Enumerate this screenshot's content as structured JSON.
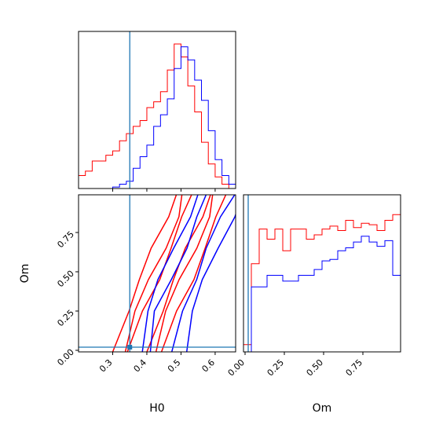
{
  "chart_data": {
    "type": "corner",
    "parameters": [
      "H0",
      "Om"
    ],
    "truth": {
      "H0": 0.35,
      "Om": 0.02
    },
    "colors": {
      "series_a": "#ff0000",
      "series_b": "#0000ff",
      "truth": "#1f77b4"
    },
    "panels": [
      {
        "id": "H0-hist",
        "type": "histogram",
        "x_param": "H0",
        "xlim": [
          0.2,
          0.66
        ],
        "bin_edges": [
          0.2,
          0.22,
          0.24,
          0.26,
          0.28,
          0.3,
          0.32,
          0.34,
          0.36,
          0.38,
          0.4,
          0.42,
          0.44,
          0.46,
          0.48,
          0.5,
          0.52,
          0.54,
          0.56,
          0.58,
          0.6,
          0.62,
          0.64,
          0.66
        ],
        "series": [
          {
            "color_key": "series_a",
            "values": [
              0.09,
              0.12,
              0.19,
              0.19,
              0.23,
              0.26,
              0.33,
              0.38,
              0.43,
              0.47,
              0.56,
              0.6,
              0.67,
              0.82,
              1.0,
              0.91,
              0.71,
              0.53,
              0.32,
              0.17,
              0.08,
              0.03,
              0.0
            ]
          },
          {
            "color_key": "series_b",
            "values": [
              0.0,
              0.0,
              0.0,
              0.0,
              0.0,
              0.01,
              0.03,
              0.05,
              0.14,
              0.22,
              0.3,
              0.43,
              0.51,
              0.62,
              0.83,
              0.98,
              0.89,
              0.75,
              0.61,
              0.4,
              0.2,
              0.09,
              0.03
            ]
          }
        ]
      },
      {
        "id": "H0-Om-contour",
        "type": "contour",
        "x_param": "H0",
        "y_param": "Om",
        "xlim": [
          0.2,
          0.66
        ],
        "ylim": [
          -0.01,
          0.99
        ],
        "series": [
          {
            "color_key": "series_a",
            "ridge": [
              [
                0.38,
                -0.01
              ],
              [
                0.42,
                0.25
              ],
              [
                0.46,
                0.45
              ],
              [
                0.5,
                0.65
              ],
              [
                0.54,
                0.85
              ],
              [
                0.56,
                0.99
              ]
            ],
            "offsets": [
              -0.08,
              -0.05,
              -0.03,
              0.02,
              0.04,
              0.07
            ]
          },
          {
            "color_key": "series_b",
            "ridge": [
              [
                0.45,
                -0.01
              ],
              [
                0.47,
                0.25
              ],
              [
                0.51,
                0.45
              ],
              [
                0.55,
                0.65
              ],
              [
                0.59,
                0.85
              ],
              [
                0.62,
                0.99
              ]
            ],
            "offsets": [
              -0.07,
              -0.04,
              0.03,
              0.06
            ]
          }
        ]
      },
      {
        "id": "Om-hist",
        "type": "histogram",
        "x_param": "Om",
        "xlim": [
          -0.01,
          0.99
        ],
        "bin_edges": [
          -0.01,
          0.04,
          0.09,
          0.14,
          0.19,
          0.24,
          0.29,
          0.34,
          0.39,
          0.44,
          0.49,
          0.54,
          0.59,
          0.64,
          0.69,
          0.74,
          0.79,
          0.84,
          0.89,
          0.94,
          0.99
        ],
        "series": [
          {
            "color_key": "series_a",
            "values": [
              0.05,
              0.61,
              0.85,
              0.78,
              0.85,
              0.7,
              0.85,
              0.85,
              0.78,
              0.81,
              0.85,
              0.87,
              0.84,
              0.91,
              0.86,
              0.89,
              0.88,
              0.84,
              0.91,
              0.95
            ]
          },
          {
            "color_key": "series_b",
            "values": [
              0.0,
              0.45,
              0.45,
              0.53,
              0.53,
              0.49,
              0.49,
              0.53,
              0.53,
              0.57,
              0.63,
              0.64,
              0.7,
              0.72,
              0.76,
              0.8,
              0.76,
              0.73,
              0.77,
              0.53
            ]
          }
        ]
      }
    ],
    "x_ticks": {
      "H0": [
        "0.3",
        "0.4",
        "0.5",
        "0.6"
      ],
      "Om": [
        "0.00",
        "0.25",
        "0.50",
        "0.75"
      ]
    },
    "y_ticks": {
      "Om": [
        "0.00",
        "0.25",
        "0.50",
        "0.75"
      ]
    },
    "axis_labels": {
      "x_left": "H0",
      "x_right": "Om",
      "y_left": "Om"
    }
  }
}
